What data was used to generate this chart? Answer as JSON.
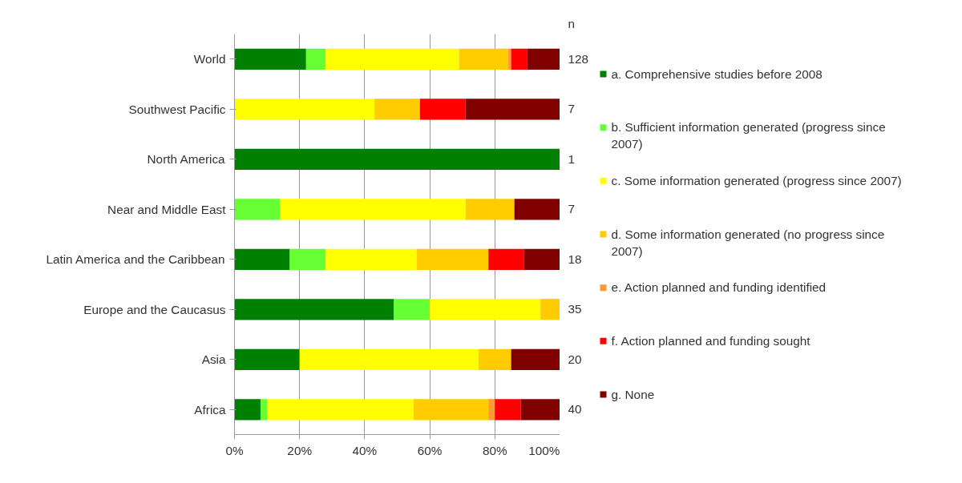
{
  "chart_data": {
    "type": "bar",
    "orientation": "horizontal",
    "stacked": true,
    "categories": [
      "World",
      "Southwest Pacific",
      "North America",
      "Near and Middle East",
      "Latin America and the Caribbean",
      "Europe and the Caucasus",
      "Asia",
      "Africa"
    ],
    "series": [
      {
        "name": "a. Comprehensive studies before 2008",
        "color": "#008000",
        "values": [
          22,
          0,
          100,
          0,
          17,
          49,
          20,
          8
        ]
      },
      {
        "name": "b. Sufficient information generated (progress since 2007)",
        "color": "#66ff33",
        "values": [
          6,
          0,
          0,
          14,
          11,
          11,
          0,
          2
        ]
      },
      {
        "name": "c. Some information generated (progress since 2007)",
        "color": "#ffff00",
        "values": [
          41,
          43,
          0,
          57,
          28,
          34,
          55,
          45
        ]
      },
      {
        "name": "d. Some information generated (no progress since 2007)",
        "color": "#ffcc00",
        "values": [
          15,
          14,
          0,
          15,
          22,
          6,
          10,
          23
        ]
      },
      {
        "name": "e. Action planned and funding identified",
        "color": "#ff9933",
        "values": [
          1,
          0,
          0,
          0,
          0,
          0,
          0,
          2
        ]
      },
      {
        "name": "f. Action planned and funding sought",
        "color": "#ff0000",
        "values": [
          5,
          14,
          0,
          0,
          11,
          0,
          0,
          8
        ]
      },
      {
        "name": "g. None",
        "color": "#800000",
        "values": [
          10,
          29,
          0,
          14,
          11,
          0,
          15,
          12
        ]
      }
    ],
    "xlim": [
      0,
      100
    ],
    "xticks": [
      {
        "value": 0,
        "label": "0%"
      },
      {
        "value": 20,
        "label": "20%"
      },
      {
        "value": 40,
        "label": "40%"
      },
      {
        "value": 60,
        "label": "60%"
      },
      {
        "value": 80,
        "label": "80%"
      },
      {
        "value": 100,
        "label": "100%"
      }
    ],
    "grid": "x",
    "legend": "right",
    "annotations": [
      "n",
      "128",
      "7",
      "1",
      "7",
      "18",
      "35",
      "20",
      "40"
    ]
  }
}
